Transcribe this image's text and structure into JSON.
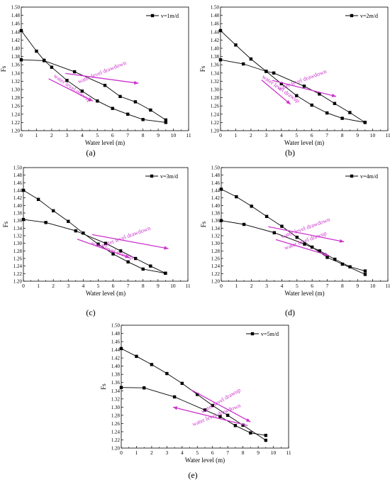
{
  "chart_data": [
    {
      "type": "line",
      "panel_label": "(a)",
      "xlabel": "Water level (m)",
      "ylabel": "Fs",
      "xlim": [
        0,
        11
      ],
      "ylim": [
        1.2,
        1.5
      ],
      "x_ticks": [
        "0",
        "1",
        "2",
        "3",
        "4",
        "5",
        "6",
        "7",
        "8",
        "9",
        "10",
        "11"
      ],
      "y_ticks": [
        "1.20",
        "1.22",
        "1.24",
        "1.26",
        "1.28",
        "1.30",
        "1.32",
        "1.34",
        "1.36",
        "1.38",
        "1.40",
        "1.42",
        "1.44",
        "1.46",
        "1.48",
        "1.50"
      ],
      "legend_position": "top-right",
      "legend": "v=1m/d",
      "series": [
        {
          "x": [
            0,
            1,
            1.5,
            2,
            3,
            4,
            5,
            6,
            7,
            8,
            9.5
          ],
          "y": [
            1.443,
            1.393,
            1.371,
            1.354,
            1.322,
            1.296,
            1.272,
            1.254,
            1.24,
            1.227,
            1.22
          ]
        },
        {
          "x": [
            0,
            1.5,
            3.5,
            5.5,
            6.5,
            7.5,
            8.5,
            9.5
          ],
          "y": [
            1.372,
            1.37,
            1.343,
            1.31,
            1.283,
            1.27,
            1.25,
            1.226
          ]
        }
      ],
      "annotations": [
        {
          "text": "water level drawdown",
          "x": 5.35,
          "y": 1.338,
          "angle": -22
        },
        {
          "text": "water level drawup",
          "x": 3.3,
          "y": 1.3,
          "angle": 35
        }
      ],
      "arrows": [
        {
          "x1": 2.9,
          "y1": 1.339,
          "x2": 7.7,
          "y2": 1.315
        },
        {
          "x1": 1.8,
          "y1": 1.326,
          "x2": 4.7,
          "y2": 1.272
        }
      ]
    },
    {
      "type": "line",
      "panel_label": "(b)",
      "xlabel": "Water level (m)",
      "ylabel": "Fs",
      "xlim": [
        0,
        11
      ],
      "ylim": [
        1.2,
        1.5
      ],
      "x_ticks": [
        "0",
        "1",
        "2",
        "3",
        "4",
        "5",
        "6",
        "7",
        "8",
        "9",
        "10",
        "11"
      ],
      "y_ticks": [
        "1.20",
        "1.22",
        "1.24",
        "1.26",
        "1.28",
        "1.30",
        "1.32",
        "1.34",
        "1.36",
        "1.38",
        "1.40",
        "1.42",
        "1.44",
        "1.46",
        "1.48",
        "1.50"
      ],
      "legend_position": "top-right",
      "legend": "v=2m/d",
      "series": [
        {
          "x": [
            0,
            1,
            2,
            3,
            4,
            5,
            6,
            7,
            8,
            9.5
          ],
          "y": [
            1.443,
            1.408,
            1.374,
            1.344,
            1.314,
            1.285,
            1.262,
            1.243,
            1.23,
            1.22
          ]
        },
        {
          "x": [
            0,
            1.5,
            3,
            3.5,
            5.5,
            6.5,
            7.5,
            8.5,
            9.5
          ],
          "y": [
            1.372,
            1.362,
            1.344,
            1.34,
            1.308,
            1.289,
            1.266,
            1.244,
            1.22
          ]
        }
      ],
      "annotations": [
        {
          "text": "water level drawdown",
          "x": 5.4,
          "y": 1.319,
          "angle": -20
        },
        {
          "text": "water level drawup",
          "x": 3.9,
          "y": 1.298,
          "angle": 35
        }
      ],
      "arrows": [
        {
          "x1": 3.4,
          "y1": 1.322,
          "x2": 7.6,
          "y2": 1.283
        },
        {
          "x1": 2.7,
          "y1": 1.323,
          "x2": 4.6,
          "y2": 1.264
        }
      ]
    },
    {
      "type": "line",
      "panel_label": "(c)",
      "xlabel": "Water level (m)",
      "ylabel": "Fs",
      "xlim": [
        0,
        11
      ],
      "ylim": [
        1.2,
        1.5
      ],
      "x_ticks": [
        "0",
        "1",
        "2",
        "3",
        "4",
        "5",
        "6",
        "7",
        "8",
        "9",
        "10",
        "11"
      ],
      "y_ticks": [
        "1.20",
        "1.22",
        "1.24",
        "1.26",
        "1.28",
        "1.30",
        "1.32",
        "1.34",
        "1.36",
        "1.38",
        "1.40",
        "1.42",
        "1.44",
        "1.46",
        "1.48",
        "1.50"
      ],
      "legend_position": "top-right",
      "legend": "v=3m/d",
      "series": [
        {
          "x": [
            0,
            1,
            2,
            3,
            4,
            5,
            6,
            7,
            8,
            9.5
          ],
          "y": [
            1.44,
            1.416,
            1.386,
            1.358,
            1.327,
            1.298,
            1.272,
            1.251,
            1.232,
            1.221
          ]
        },
        {
          "x": [
            0,
            1.5,
            3.5,
            5.5,
            6.5,
            7.5,
            8.5,
            9.5
          ],
          "y": [
            1.363,
            1.355,
            1.333,
            1.3,
            1.28,
            1.26,
            1.24,
            1.221
          ]
        }
      ],
      "annotations": [
        {
          "text": "water level drawdown",
          "x": 6.9,
          "y": 1.313,
          "angle": -20
        },
        {
          "text": "water level drawup",
          "x": 5.9,
          "y": 1.277,
          "angle": 20
        }
      ],
      "arrows": [
        {
          "x1": 4.6,
          "y1": 1.323,
          "x2": 9.7,
          "y2": 1.286
        },
        {
          "x1": 3.6,
          "y1": 1.311,
          "x2": 7.1,
          "y2": 1.262
        }
      ]
    },
    {
      "type": "line",
      "panel_label": "(d)",
      "xlabel": "Water level (m)",
      "ylabel": "Fs",
      "xlim": [
        0,
        11
      ],
      "ylim": [
        1.2,
        1.5
      ],
      "x_ticks": [
        "0",
        "1",
        "2",
        "3",
        "4",
        "5",
        "6",
        "7",
        "8",
        "9",
        "10",
        "11"
      ],
      "y_ticks": [
        "1.20",
        "1.22",
        "1.24",
        "1.26",
        "1.28",
        "1.30",
        "1.32",
        "1.34",
        "1.36",
        "1.38",
        "1.40",
        "1.42",
        "1.44",
        "1.46",
        "1.48",
        "1.50"
      ],
      "legend_position": "top-right",
      "legend": "v=4m/d",
      "series": [
        {
          "x": [
            0,
            1,
            2,
            3,
            4,
            5,
            6,
            7,
            8,
            9.5
          ],
          "y": [
            1.443,
            1.423,
            1.398,
            1.371,
            1.345,
            1.316,
            1.29,
            1.263,
            1.245,
            1.218
          ]
        },
        {
          "x": [
            0,
            1.5,
            3.5,
            5.5,
            6.5,
            7.5,
            8.5,
            9.5
          ],
          "y": [
            1.36,
            1.35,
            1.328,
            1.298,
            1.28,
            1.258,
            1.238,
            1.227
          ]
        }
      ],
      "annotations": [
        {
          "text": "water level drawdown",
          "x": 5.6,
          "y": 1.336,
          "angle": -20
        },
        {
          "text": "water level drawup",
          "x": 5.6,
          "y": 1.303,
          "angle": -20
        }
      ],
      "arrows": [
        {
          "x1": 3.1,
          "y1": 1.344,
          "x2": 8.1,
          "y2": 1.304
        },
        {
          "x1": 3.6,
          "y1": 1.31,
          "x2": 7.1,
          "y2": 1.268
        }
      ]
    },
    {
      "type": "line",
      "panel_label": "(e)",
      "xlabel": "Water level (m)",
      "ylabel": "Fs",
      "xlim": [
        0,
        11
      ],
      "ylim": [
        1.2,
        1.5
      ],
      "x_ticks": [
        "0",
        "1",
        "2",
        "3",
        "4",
        "5",
        "6",
        "7",
        "8",
        "9",
        "10",
        "11"
      ],
      "y_ticks": [
        "1.20",
        "1.22",
        "1.24",
        "1.26",
        "1.28",
        "1.30",
        "1.32",
        "1.34",
        "1.36",
        "1.38",
        "1.40",
        "1.42",
        "1.44",
        "1.46",
        "1.48",
        "1.50"
      ],
      "legend_position": "top-right",
      "legend": "v=5m/d",
      "series": [
        {
          "x": [
            0,
            1,
            2,
            3,
            4,
            5,
            6,
            7,
            8,
            9.5
          ],
          "y": [
            1.443,
            1.424,
            1.404,
            1.382,
            1.358,
            1.331,
            1.304,
            1.28,
            1.256,
            1.219
          ]
        },
        {
          "x": [
            0,
            1.5,
            3.5,
            5.5,
            6.5,
            7.5,
            8.5,
            9.5
          ],
          "y": [
            1.348,
            1.347,
            1.325,
            1.293,
            1.277,
            1.255,
            1.237,
            1.231
          ]
        }
      ],
      "annotations": [
        {
          "text": "water level drawup",
          "x": 6.6,
          "y": 1.312,
          "angle": -30
        },
        {
          "text": "water level drawdown",
          "x": 6.3,
          "y": 1.277,
          "angle": -22
        }
      ],
      "arrows": [
        {
          "x1": 4.6,
          "y1": 1.342,
          "x2": 8.5,
          "y2": 1.264
        },
        {
          "x1": 8.3,
          "y1": 1.255,
          "x2": 3.4,
          "y2": 1.3
        }
      ]
    }
  ],
  "colors": {
    "line": "#000000",
    "marker": "#000000",
    "annotation": "#cc33cc"
  }
}
